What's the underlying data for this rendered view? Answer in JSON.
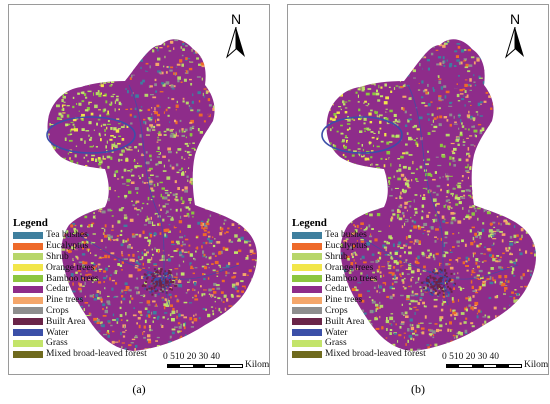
{
  "panels": [
    {
      "caption": "(a)",
      "north_label": "N",
      "legend": {
        "title": "Legend",
        "items": [
          {
            "label": "Tea bushes",
            "color": "#3f7f9e"
          },
          {
            "label": "Eucalyptus",
            "color": "#ee6a2a"
          },
          {
            "label": "Shrub",
            "color": "#b7d66a"
          },
          {
            "label": "Orange trees",
            "color": "#f2e64a"
          },
          {
            "label": "Bamboo trees",
            "color": "#8cc63f"
          },
          {
            "label": "Cedar",
            "color": "#8e2c8a"
          },
          {
            "label": "Pine trees",
            "color": "#f4a66a"
          },
          {
            "label": "Crops",
            "color": "#8e8e8e"
          },
          {
            "label": "Built Area",
            "color": "#6a2448"
          },
          {
            "label": "Water",
            "color": "#3b4fa8"
          },
          {
            "label": "Grass",
            "color": "#c3e46a"
          },
          {
            "label": "Mixed broad-leaved forest",
            "color": "#6f6a1e"
          }
        ]
      },
      "scale": {
        "ticks": "0 510 20 30 40",
        "unit": "Kilometers"
      }
    },
    {
      "caption": "(b)",
      "north_label": "N",
      "legend": {
        "title": "Legend",
        "items": [
          {
            "label": "Tea bushes",
            "color": "#3f7f9e"
          },
          {
            "label": "Eucalyptus",
            "color": "#ee6a2a"
          },
          {
            "label": "Shrub",
            "color": "#b7d66a"
          },
          {
            "label": "Orange trees",
            "color": "#f2e64a"
          },
          {
            "label": "Bamboo trees",
            "color": "#8cc63f"
          },
          {
            "label": "Cedar",
            "color": "#8e2c8a"
          },
          {
            "label": "Pine trees",
            "color": "#f4a66a"
          },
          {
            "label": "Crops",
            "color": "#8e8e8e"
          },
          {
            "label": "Built Area",
            "color": "#6a2448"
          },
          {
            "label": "Water",
            "color": "#3b4fa8"
          },
          {
            "label": "Grass",
            "color": "#c3e46a"
          },
          {
            "label": "Mixed broad-leaved forest",
            "color": "#6f6a1e"
          }
        ]
      },
      "scale": {
        "ticks": "0 510 20 30 40",
        "unit": "Kilometers"
      }
    }
  ]
}
